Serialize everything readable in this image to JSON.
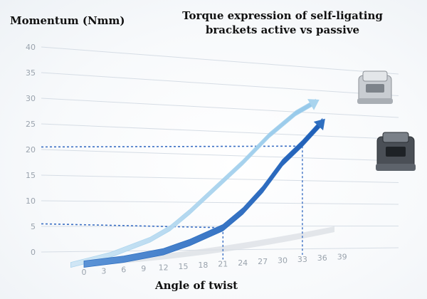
{
  "chart_data": {
    "type": "line",
    "title": "Torque expression of self-ligating brackets active vs passive",
    "ylabel": "Momentum (Nmm)",
    "xlabel": "Angle of twist",
    "yticks": [
      "0",
      "5",
      "10",
      "15",
      "20",
      "25",
      "30",
      "35",
      "40"
    ],
    "xticks": [
      "0",
      "3",
      "6",
      "9",
      "12",
      "15",
      "18",
      "21",
      "24",
      "27",
      "30",
      "33",
      "36",
      "39"
    ],
    "ylim": [
      0,
      40
    ],
    "xlim": [
      0,
      39
    ],
    "grid": true,
    "series": [
      {
        "color": "#a9d4ee",
        "x": [
          -2,
          4,
          10,
          13,
          16,
          20,
          24,
          28,
          32,
          35
        ],
        "y": [
          0,
          1.5,
          4,
          6,
          9,
          13.5,
          18,
          23,
          27,
          29
        ]
      },
      {
        "color": "#2f6fc0",
        "x": [
          0,
          6,
          12,
          16,
          21,
          24,
          27,
          30,
          33,
          36
        ],
        "y": [
          0,
          0.5,
          1.5,
          3,
          5.5,
          8.5,
          12.5,
          17.5,
          21,
          25
        ]
      }
    ],
    "reference_lines": [
      {
        "y": 20.5,
        "x": 33
      },
      {
        "y": 5.5,
        "x": 21
      }
    ],
    "colors": {
      "grid": "#d6dde5",
      "ticks": "#9aa3ad",
      "reference": "#3b6fc4"
    }
  }
}
